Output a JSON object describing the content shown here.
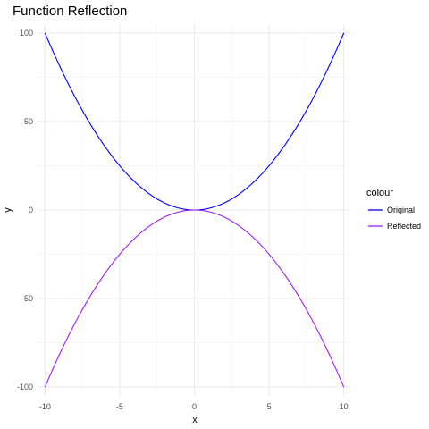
{
  "chart_data": {
    "type": "line",
    "title": "Function Reflection",
    "xlabel": "x",
    "ylabel": "y",
    "xlim": [
      -10.5,
      10.5
    ],
    "ylim": [
      -105,
      105
    ],
    "x_ticks": [
      -10,
      -5,
      0,
      5,
      10
    ],
    "x_tick_labels": [
      "-10",
      "-5",
      "0",
      "5",
      "10"
    ],
    "y_ticks": [
      -100,
      -50,
      0,
      50,
      100
    ],
    "y_tick_labels": [
      "-100",
      "-50",
      "0",
      "50",
      "100"
    ],
    "grid": true,
    "legend": {
      "title": "colour",
      "position": "right"
    },
    "series": [
      {
        "name": "Original",
        "color": "#0000ff",
        "x": [
          -10,
          -9,
          -8,
          -7,
          -6,
          -5,
          -4,
          -3,
          -2,
          -1,
          0,
          1,
          2,
          3,
          4,
          5,
          6,
          7,
          8,
          9,
          10
        ],
        "y": [
          100,
          81,
          64,
          49,
          36,
          25,
          16,
          9,
          4,
          1,
          0,
          1,
          4,
          9,
          16,
          25,
          36,
          49,
          64,
          81,
          100
        ]
      },
      {
        "name": "Reflected",
        "color": "#a020f0",
        "x": [
          -10,
          -9,
          -8,
          -7,
          -6,
          -5,
          -4,
          -3,
          -2,
          -1,
          0,
          1,
          2,
          3,
          4,
          5,
          6,
          7,
          8,
          9,
          10
        ],
        "y": [
          -100,
          -81,
          -64,
          -49,
          -36,
          -25,
          -16,
          -9,
          -4,
          -1,
          0,
          -1,
          -4,
          -9,
          -16,
          -25,
          -36,
          -49,
          -64,
          -81,
          -100
        ]
      }
    ]
  }
}
